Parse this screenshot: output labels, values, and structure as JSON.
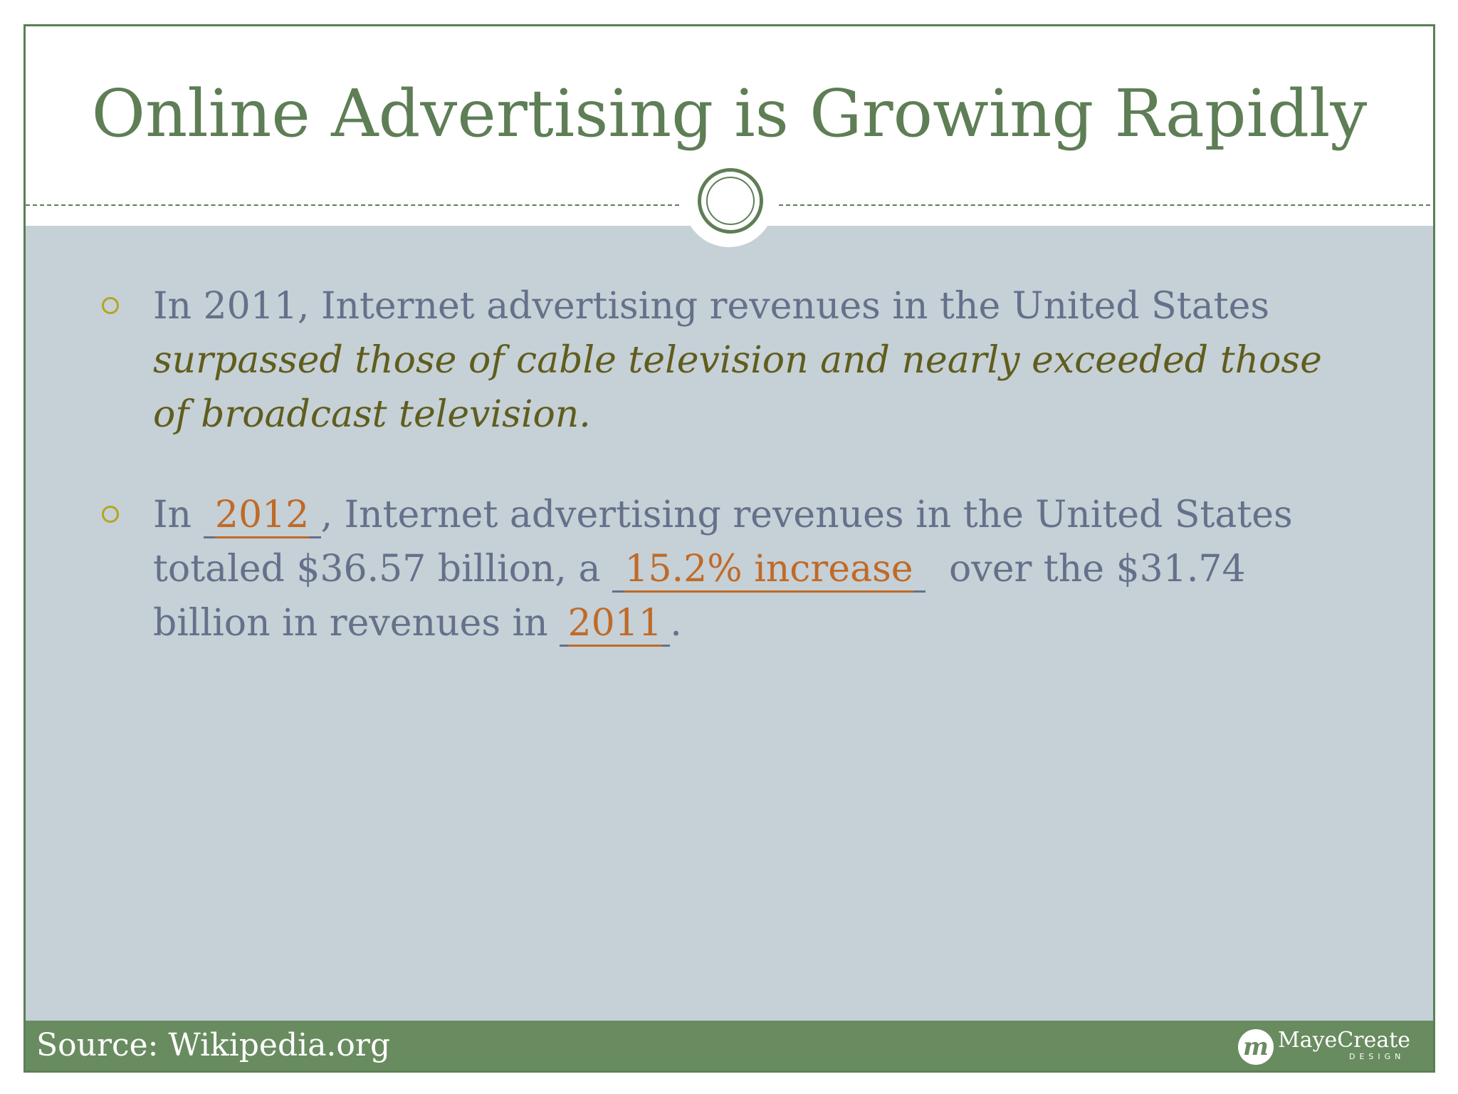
{
  "slide": {
    "title": "Online Advertising is Growing Rapidly"
  },
  "bullets": [
    {
      "line1": "In 2011, Internet advertising revenues in the United States",
      "emph_line2": "surpassed those of cable television and nearly exceeded those",
      "emph_line3": "of broadcast television."
    },
    {
      "pre": "In ",
      "blank1": "2012",
      "mid1": ", Internet advertising revenues in the United States",
      "line2_pre": "totaled $36.57 billion, a ",
      "blank2": "15.2% increase",
      "line2_post": "  over the $31.74",
      "line3_pre": "billion in revenues in ",
      "blank3": "2011",
      "line3_post": "."
    }
  ],
  "footer": {
    "source": "Source: Wikipedia.org",
    "logo_mark": "m",
    "logo_name": "MayeCreate",
    "logo_sub": "DESIGN"
  },
  "colors": {
    "accent_green": "#5e7e55",
    "panel": "#c5d0d7",
    "body_text": "#66708a",
    "emphasis_text": "#605d1d",
    "fill_in_text": "#c06a27",
    "bullet_marker": "#b6a51c",
    "footer_bar": "#698b60"
  }
}
